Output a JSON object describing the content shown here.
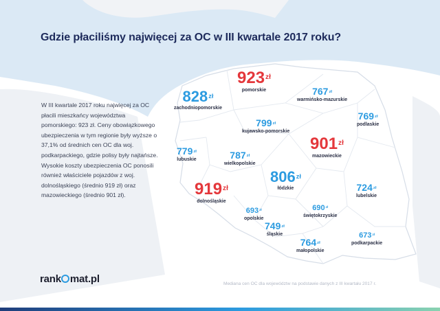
{
  "title": "Gdzie płaciliśmy najwięcej za OC w III kwartale 2017 roku?",
  "description": "W III kwartale 2017 roku najwięcej za OC płacili mieszkańcy województwa pomorskiego: 923 zł. Ceny obowiązkowego ubezpieczenia w tym regionie były wyższe o 37,1% od średnich cen OC dla woj. podkarpackiego, gdzie polisy były najtańsze. Wysokie koszty ubezpieczenia OC ponosili również właściciele pojazdów z woj. dolnośląskiego (średnio 919 zł) oraz mazowieckiego (średnio 901 zł).",
  "currency": "zł",
  "regions": [
    {
      "id": "pomorskie",
      "name": "pomorskie",
      "price": "923",
      "color": "#e4373b"
    },
    {
      "id": "zachodniopomorskie",
      "name": "zachodniopomorskie",
      "price": "828",
      "color": "#2c9be0"
    },
    {
      "id": "warminsko-mazurskie",
      "name": "warmińsko-mazurskie",
      "price": "767",
      "color": "#2c9be0"
    },
    {
      "id": "podlaskie",
      "name": "podlaskie",
      "price": "769",
      "color": "#2c9be0"
    },
    {
      "id": "kujawsko-pomorskie",
      "name": "kujawsko-pomorskie",
      "price": "799",
      "color": "#2c9be0"
    },
    {
      "id": "lubuskie",
      "name": "lubuskie",
      "price": "779",
      "color": "#2c9be0"
    },
    {
      "id": "wielkopolskie",
      "name": "wielkopolskie",
      "price": "787",
      "color": "#2c9be0"
    },
    {
      "id": "mazowieckie",
      "name": "mazowieckie",
      "price": "901",
      "color": "#e4373b"
    },
    {
      "id": "lodzkie",
      "name": "łódzkie",
      "price": "806",
      "color": "#2c9be0"
    },
    {
      "id": "dolnoslaskie",
      "name": "dolnośląskie",
      "price": "919",
      "color": "#e4373b"
    },
    {
      "id": "lubelskie",
      "name": "lubelskie",
      "price": "724",
      "color": "#2c9be0"
    },
    {
      "id": "opolskie",
      "name": "opolskie",
      "price": "693",
      "color": "#2c9be0"
    },
    {
      "id": "swietokrzyskie",
      "name": "świętokrzyskie",
      "price": "690",
      "color": "#2c9be0"
    },
    {
      "id": "slaskie",
      "name": "śląskie",
      "price": "749",
      "color": "#2c9be0"
    },
    {
      "id": "malopolskie",
      "name": "małopolskie",
      "price": "764",
      "color": "#2c9be0"
    },
    {
      "id": "podkarpackie",
      "name": "podkarpackie",
      "price": "673",
      "color": "#2c9be0"
    }
  ],
  "logo": {
    "part1": "rank",
    "part2": "mat.pl"
  },
  "source": "Mediana cen OC dla województw na podstawie danych z III kwartału 2017 r."
}
